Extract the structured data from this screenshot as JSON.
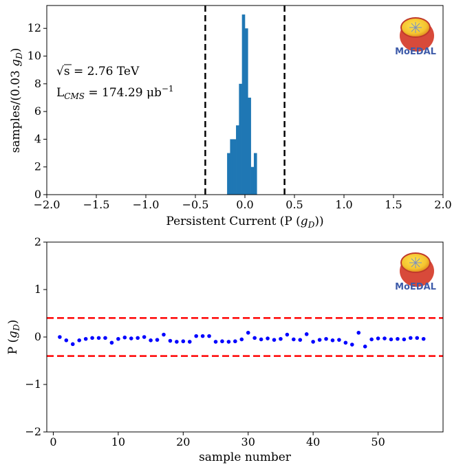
{
  "chart_data": [
    {
      "type": "bar",
      "xlabel": "Persistent Current (P (g_D))",
      "xlabel_parts": {
        "main": "Persistent Current (P (",
        "sym": "g",
        "sub": "D",
        "close": "))"
      },
      "ylabel": "samples/(0.03 g_D)",
      "ylabel_parts": {
        "main": "samples/(0.03 ",
        "sym": "g",
        "sub": "D",
        "close": ")"
      },
      "xlim": [
        -2.0,
        2.0
      ],
      "ylim": [
        0,
        13.65
      ],
      "xticks": [
        -2.0,
        -1.5,
        -1.0,
        -0.5,
        0.0,
        0.5,
        1.0,
        1.5,
        2.0
      ],
      "xtick_labels": [
        "−2.0",
        "−1.5",
        "−1.0",
        "−0.5",
        "0.0",
        "0.5",
        "1.0",
        "1.5",
        "2.0"
      ],
      "yticks": [
        0,
        2,
        4,
        6,
        8,
        10,
        12
      ],
      "ytick_labels": [
        "0",
        "2",
        "4",
        "6",
        "8",
        "10",
        "12"
      ],
      "bin_width": 0.03,
      "bins": [
        {
          "x0": -0.18,
          "count": 3
        },
        {
          "x0": -0.15,
          "count": 4
        },
        {
          "x0": -0.12,
          "count": 4
        },
        {
          "x0": -0.09,
          "count": 5
        },
        {
          "x0": -0.06,
          "count": 8
        },
        {
          "x0": -0.03,
          "count": 13
        },
        {
          "x0": 0.0,
          "count": 12
        },
        {
          "x0": 0.03,
          "count": 7
        },
        {
          "x0": 0.06,
          "count": 2
        },
        {
          "x0": 0.09,
          "count": 3
        }
      ],
      "bar_color": "#1f77b4",
      "vlines": [
        -0.4,
        0.4
      ],
      "vline_color": "#000000",
      "annotation": {
        "sqrt": "√s",
        "energy": " = 2.76 TeV",
        "lumi_prefix": "L",
        "lumi_sub": "CMS",
        "lumi_value": " = 174.29 μb",
        "lumi_sup": "−1"
      },
      "logo_text": "MoEDAL"
    },
    {
      "type": "scatter",
      "xlabel": "sample number",
      "ylabel": "P (g_D)",
      "ylabel_parts": {
        "main": "P (",
        "sym": "g",
        "sub": "D",
        "close": ")"
      },
      "xlim": [
        -1,
        60
      ],
      "ylim": [
        -2,
        2
      ],
      "xticks": [
        0,
        10,
        20,
        30,
        40,
        50
      ],
      "xtick_labels": [
        "0",
        "10",
        "20",
        "30",
        "40",
        "50"
      ],
      "yticks": [
        -2,
        -1,
        0,
        1,
        2
      ],
      "ytick_labels": [
        "−2",
        "−1",
        "0",
        "1",
        "2"
      ],
      "x": [
        1,
        2,
        3,
        4,
        5,
        6,
        7,
        8,
        9,
        10,
        11,
        12,
        13,
        14,
        15,
        16,
        17,
        18,
        19,
        20,
        21,
        22,
        23,
        24,
        25,
        26,
        27,
        28,
        29,
        30,
        31,
        32,
        33,
        34,
        35,
        36,
        37,
        38,
        39,
        40,
        41,
        42,
        43,
        44,
        45,
        46,
        47,
        48,
        49,
        50,
        51,
        52,
        53,
        54,
        55,
        56,
        57
      ],
      "y": [
        0.0,
        -0.07,
        -0.15,
        -0.07,
        -0.04,
        -0.02,
        -0.02,
        -0.02,
        -0.12,
        -0.04,
        -0.01,
        -0.03,
        -0.02,
        0.0,
        -0.07,
        -0.06,
        0.05,
        -0.08,
        -0.1,
        -0.09,
        -0.1,
        0.02,
        0.02,
        0.02,
        -0.1,
        -0.09,
        -0.1,
        -0.09,
        -0.05,
        0.09,
        -0.02,
        -0.05,
        -0.03,
        -0.06,
        -0.04,
        0.05,
        -0.05,
        -0.06,
        0.06,
        -0.1,
        -0.06,
        -0.04,
        -0.07,
        -0.06,
        -0.12,
        -0.16,
        0.09,
        -0.2,
        -0.05,
        -0.03,
        -0.03,
        -0.05,
        -0.04,
        -0.05,
        -0.02,
        -0.02,
        -0.04
      ],
      "marker_color": "#0000ff",
      "hlines": [
        0.4,
        -0.4
      ],
      "hline_color": "#ff0000",
      "logo_text": "MoEDAL"
    }
  ]
}
